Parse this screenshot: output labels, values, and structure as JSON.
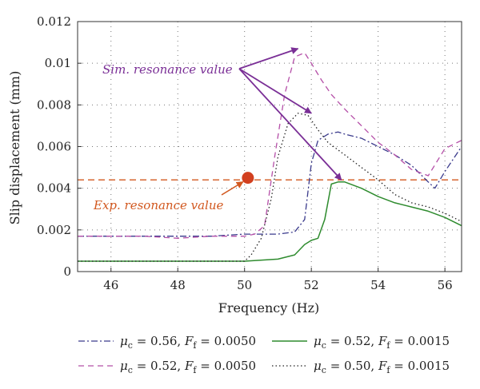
{
  "chart_data": {
    "type": "line",
    "xlabel": "Frequency (Hz)",
    "ylabel": "Slip displacement (mm)",
    "xlim": [
      45,
      56.5
    ],
    "ylim": [
      0,
      0.012
    ],
    "xticks": [
      "46",
      "48",
      "50",
      "52",
      "54",
      "56"
    ],
    "yticks": [
      "0",
      "0.002",
      "0.004",
      "0.006",
      "0.008",
      "0.01",
      "0.012"
    ],
    "grid": true,
    "legend_position": "bottom",
    "series": [
      {
        "name_parts": {
          "mu": "μ",
          "mu_sub": "c",
          "mu_val": " = 0.56, ",
          "f": "F",
          "f_sub": "f",
          "f_val": " = 0.0050"
        },
        "color": "#3a3a8c",
        "dash": "8,3,2,3",
        "width": 1.3,
        "x": [
          45,
          46,
          47,
          48,
          49,
          50,
          51,
          51.5,
          51.8,
          52.0,
          52.2,
          52.5,
          52.8,
          53,
          53.5,
          54,
          54.5,
          55,
          55.5,
          55.7,
          56,
          56.5
        ],
        "y": [
          0.0017,
          0.0017,
          0.0017,
          0.0017,
          0.0017,
          0.0018,
          0.0018,
          0.0019,
          0.0025,
          0.0052,
          0.0063,
          0.0066,
          0.0067,
          0.0066,
          0.0064,
          0.006,
          0.0056,
          0.0051,
          0.0043,
          0.004,
          0.0048,
          0.006
        ]
      },
      {
        "name_parts": {
          "mu": "μ",
          "mu_sub": "c",
          "mu_val": " = 0.52, ",
          "f": "F",
          "f_sub": "f",
          "f_val": " = 0.0050"
        },
        "color": "#b54fa8",
        "dash": "7,5",
        "width": 1.3,
        "x": [
          45,
          46,
          47,
          48,
          49,
          50,
          50.3,
          50.6,
          50.9,
          51.2,
          51.5,
          51.8,
          52.0,
          52.3,
          52.6,
          53,
          53.5,
          54,
          54.5,
          55,
          55.5,
          56,
          56.5
        ],
        "y": [
          0.0017,
          0.0017,
          0.0017,
          0.0016,
          0.0017,
          0.0017,
          0.0018,
          0.0022,
          0.0055,
          0.0085,
          0.0103,
          0.0105,
          0.01,
          0.0092,
          0.0085,
          0.0078,
          0.007,
          0.0062,
          0.0056,
          0.0049,
          0.0046,
          0.0059,
          0.0063
        ]
      },
      {
        "name_parts": {
          "mu": "μ",
          "mu_sub": "c",
          "mu_val": " = 0.52, ",
          "f": "F",
          "f_sub": "f",
          "f_val": " = 0.0015"
        },
        "color": "#2e8b2e",
        "dash": "",
        "width": 1.5,
        "x": [
          45,
          46,
          47,
          48,
          49,
          50,
          51,
          51.5,
          51.8,
          52.0,
          52.2,
          52.4,
          52.6,
          52.8,
          53,
          53.5,
          54,
          54.5,
          55,
          55.5,
          56,
          56.5
        ],
        "y": [
          0.0005,
          0.0005,
          0.0005,
          0.0005,
          0.0005,
          0.0005,
          0.0006,
          0.0008,
          0.0013,
          0.0015,
          0.0016,
          0.0025,
          0.0042,
          0.0043,
          0.0043,
          0.004,
          0.0036,
          0.0033,
          0.0031,
          0.0029,
          0.0026,
          0.0022
        ]
      },
      {
        "name_parts": {
          "mu": "μ",
          "mu_sub": "c",
          "mu_val": " = 0.50, ",
          "f": "F",
          "f_sub": "f",
          "f_val": " = 0.0015"
        },
        "color": "#222222",
        "dash": "1.5,3",
        "width": 1.3,
        "x": [
          45,
          46,
          47,
          48,
          49,
          50,
          50.2,
          50.5,
          50.8,
          51.0,
          51.3,
          51.6,
          51.9,
          52.2,
          52.5,
          53,
          53.5,
          54,
          54.5,
          55,
          55.5,
          56,
          56.5
        ],
        "y": [
          0.0005,
          0.0005,
          0.0005,
          0.0005,
          0.0005,
          0.0005,
          0.0008,
          0.0016,
          0.0035,
          0.0055,
          0.0071,
          0.0076,
          0.0075,
          0.0068,
          0.0062,
          0.0056,
          0.005,
          0.0044,
          0.0037,
          0.0033,
          0.0031,
          0.0028,
          0.0024
        ]
      }
    ],
    "reference_line": {
      "y": 0.0044,
      "color": "#d2581f"
    },
    "exp_marker": {
      "x": 50.1,
      "y": 0.0045,
      "color": "#d2401f"
    },
    "annotations": {
      "sim_text": "Sim. resonance value",
      "sim_color": "#7a2f96",
      "sim_targets": [
        {
          "x": 51.6,
          "y": 0.0107
        },
        {
          "x": 52.0,
          "y": 0.0076
        },
        {
          "x": 52.9,
          "y": 0.0044
        }
      ],
      "exp_text": "Exp. resonance value",
      "exp_color": "#d2581f"
    }
  }
}
